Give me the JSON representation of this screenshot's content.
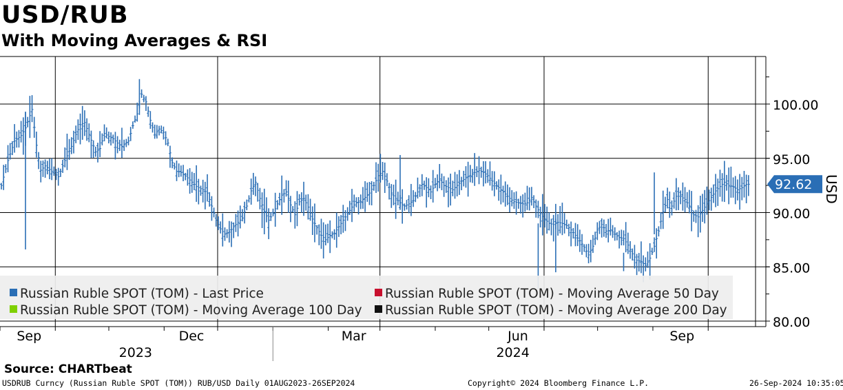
{
  "header": {
    "title": "USD/RUB",
    "subtitle": "With Moving Averages & RSI"
  },
  "chart_data": {
    "type": "ohlc",
    "title": "USD/RUB",
    "subtitle": "With Moving Averages & RSI",
    "ylabel": "USD",
    "ylim": [
      79.5,
      103.5
    ],
    "yticks": [
      80,
      85,
      90,
      95,
      100
    ],
    "ytick_labels": [
      "80.00",
      "85.00",
      "90.00",
      "95.00",
      "100.00"
    ],
    "grid": true,
    "x_range": [
      "2023-08-01",
      "2024-09-26"
    ],
    "x_month_labels": [
      {
        "label": "Sep",
        "date": "2023-09-01"
      },
      {
        "label": "Dec",
        "date": "2023-12-01"
      },
      {
        "label": "Mar",
        "date": "2024-03-01"
      },
      {
        "label": "Jun",
        "date": "2024-06-01"
      },
      {
        "label": "Sep",
        "date": "2024-09-01"
      }
    ],
    "x_year_labels": [
      {
        "label": "2023",
        "from": "2023-08-01",
        "to": "2023-12-31"
      },
      {
        "label": "2024",
        "from": "2024-01-01",
        "to": "2024-09-26"
      }
    ],
    "vertical_gridlines": [
      "2023-09-01",
      "2023-12-01",
      "2024-03-01",
      "2024-06-01",
      "2024-09-01"
    ],
    "last_price_label": "92.62",
    "last_price": 92.62,
    "last_price_color": "#2a6eb5",
    "series_color": "#2a6eb5",
    "series": [
      {
        "name": "Russian Ruble SPOT (TOM) - Last Price",
        "color": "#2a6eb5",
        "points": [
          [
            0,
            92.5
          ],
          [
            3,
            94.8
          ],
          [
            6,
            96.6
          ],
          [
            9,
            97.1
          ],
          [
            11,
            97.8
          ],
          [
            14,
            99.5
          ],
          [
            16,
            96.2
          ],
          [
            18,
            93.9
          ],
          [
            20,
            94.3
          ],
          [
            23,
            93.8
          ],
          [
            26,
            93.3
          ],
          [
            29,
            94.8
          ],
          [
            32,
            96.1
          ],
          [
            34,
            97.2
          ],
          [
            36,
            98.1
          ],
          [
            38,
            98.3
          ],
          [
            40,
            97.2
          ],
          [
            43,
            95.6
          ],
          [
            45,
            95.9
          ],
          [
            47,
            97.3
          ],
          [
            49,
            97.0
          ],
          [
            51,
            96.8
          ],
          [
            53,
            96.4
          ],
          [
            55,
            96.1
          ],
          [
            58,
            96.6
          ],
          [
            60,
            98.0
          ],
          [
            62,
            99.1
          ],
          [
            64,
            100.9
          ],
          [
            66,
            100.2
          ],
          [
            68,
            98.5
          ],
          [
            70,
            97.2
          ],
          [
            72,
            97.7
          ],
          [
            74,
            97.4
          ],
          [
            76,
            96.4
          ],
          [
            78,
            94.6
          ],
          [
            80,
            93.8
          ],
          [
            82,
            93.7
          ],
          [
            85,
            93.2
          ],
          [
            87,
            92.8
          ],
          [
            89,
            92.4
          ],
          [
            92,
            92.1
          ],
          [
            94,
            91.8
          ],
          [
            96,
            90.6
          ],
          [
            98,
            89.3
          ],
          [
            100,
            88.5
          ],
          [
            102,
            88.0
          ],
          [
            104,
            88.2
          ],
          [
            106,
            88.7
          ],
          [
            108,
            89.1
          ],
          [
            110,
            89.5
          ],
          [
            112,
            90.6
          ],
          [
            114,
            92.0
          ],
          [
            116,
            92.8
          ],
          [
            118,
            91.3
          ],
          [
            120,
            90.1
          ],
          [
            122,
            89.3
          ],
          [
            124,
            89.9
          ],
          [
            126,
            90.8
          ],
          [
            128,
            91.6
          ],
          [
            130,
            91.9
          ],
          [
            132,
            90.7
          ],
          [
            134,
            89.8
          ],
          [
            136,
            91.0
          ],
          [
            138,
            91.3
          ],
          [
            140,
            90.5
          ],
          [
            142,
            89.4
          ],
          [
            144,
            88.6
          ],
          [
            146,
            87.9
          ],
          [
            148,
            87.5
          ],
          [
            150,
            87.9
          ],
          [
            152,
            88.1
          ],
          [
            154,
            88.7
          ],
          [
            156,
            89.3
          ],
          [
            158,
            89.9
          ],
          [
            160,
            90.5
          ],
          [
            162,
            90.9
          ],
          [
            164,
            91.0
          ],
          [
            166,
            91.4
          ],
          [
            168,
            91.8
          ],
          [
            170,
            92.5
          ],
          [
            172,
            93.4
          ],
          [
            174,
            93.8
          ],
          [
            176,
            92.9
          ],
          [
            178,
            91.8
          ],
          [
            180,
            91.3
          ],
          [
            182,
            90.9
          ],
          [
            184,
            90.6
          ],
          [
            186,
            90.8
          ],
          [
            188,
            91.1
          ],
          [
            190,
            91.9
          ],
          [
            192,
            92.6
          ],
          [
            194,
            92.3
          ],
          [
            196,
            91.9
          ],
          [
            198,
            92.6
          ],
          [
            200,
            93.1
          ],
          [
            202,
            92.5
          ],
          [
            204,
            92.3
          ],
          [
            206,
            92.1
          ],
          [
            208,
            92.5
          ],
          [
            210,
            92.9
          ],
          [
            212,
            93.2
          ],
          [
            214,
            93.4
          ],
          [
            216,
            93.7
          ],
          [
            218,
            93.9
          ],
          [
            220,
            93.7
          ],
          [
            222,
            93.4
          ],
          [
            224,
            92.9
          ],
          [
            226,
            92.5
          ],
          [
            228,
            92.1
          ],
          [
            230,
            91.7
          ],
          [
            232,
            91.3
          ],
          [
            234,
            91.0
          ],
          [
            236,
            90.9
          ],
          [
            238,
            90.8
          ],
          [
            240,
            90.9
          ],
          [
            242,
            91.4
          ],
          [
            244,
            90.6
          ],
          [
            246,
            89.9
          ],
          [
            248,
            89.4
          ],
          [
            250,
            89.0
          ],
          [
            252,
            88.9
          ],
          [
            254,
            89.1
          ],
          [
            256,
            89.0
          ],
          [
            258,
            88.8
          ],
          [
            260,
            88.4
          ],
          [
            262,
            87.9
          ],
          [
            264,
            87.4
          ],
          [
            266,
            86.8
          ],
          [
            268,
            86.1
          ],
          [
            270,
            86.9
          ],
          [
            272,
            88.4
          ],
          [
            274,
            88.9
          ],
          [
            276,
            88.3
          ],
          [
            278,
            88.4
          ],
          [
            280,
            88.0
          ],
          [
            282,
            87.7
          ],
          [
            284,
            87.6
          ],
          [
            286,
            87.0
          ],
          [
            288,
            86.2
          ],
          [
            290,
            85.6
          ],
          [
            292,
            85.5
          ],
          [
            294,
            85.1
          ],
          [
            296,
            85.8
          ],
          [
            298,
            86.9
          ],
          [
            300,
            88.3
          ],
          [
            302,
            90.1
          ],
          [
            304,
            91.2
          ],
          [
            306,
            90.6
          ],
          [
            308,
            91.5
          ],
          [
            310,
            91.5
          ],
          [
            312,
            91.2
          ],
          [
            314,
            90.6
          ],
          [
            316,
            89.8
          ],
          [
            318,
            89.6
          ],
          [
            320,
            90.2
          ],
          [
            322,
            90.8
          ],
          [
            324,
            91.4
          ],
          [
            326,
            92.0
          ],
          [
            328,
            92.4
          ],
          [
            330,
            92.8
          ],
          [
            332,
            92.5
          ],
          [
            334,
            92.4
          ],
          [
            336,
            92.1
          ],
          [
            338,
            92.3
          ],
          [
            340,
            92.6
          ],
          [
            342,
            92.62
          ]
        ]
      },
      {
        "name": "Russian Ruble SPOT (TOM) - Moving Average 50 Day",
        "color": "#c8102e",
        "points": []
      },
      {
        "name": "Russian Ruble SPOT (TOM) - Moving Average 100 Day",
        "color": "#7fd000",
        "points": []
      },
      {
        "name": "Russian Ruble SPOT (TOM) - Moving Average 200 Day",
        "color": "#111111",
        "points": []
      }
    ]
  },
  "legend": {
    "items": [
      {
        "label": "Russian Ruble SPOT (TOM) - Last Price",
        "color": "#2a6eb5"
      },
      {
        "label": "Russian Ruble SPOT (TOM) - Moving Average 50 Day",
        "color": "#c8102e"
      },
      {
        "label": "Russian Ruble SPOT (TOM) - Moving Average 100 Day",
        "color": "#7fd000"
      },
      {
        "label": "Russian Ruble SPOT (TOM) - Moving Average 200 Day",
        "color": "#111111"
      }
    ]
  },
  "footer": {
    "source": "Source: CHARTbeat",
    "ticker_info": "USDRUB Curncy (Russian Ruble SPOT (TOM)) RUB/USD  Daily 01AUG2023-26SEP2024",
    "copyright": "Copyright© 2024 Bloomberg Finance L.P.",
    "timestamp": "26-Sep-2024 10:35:05"
  }
}
